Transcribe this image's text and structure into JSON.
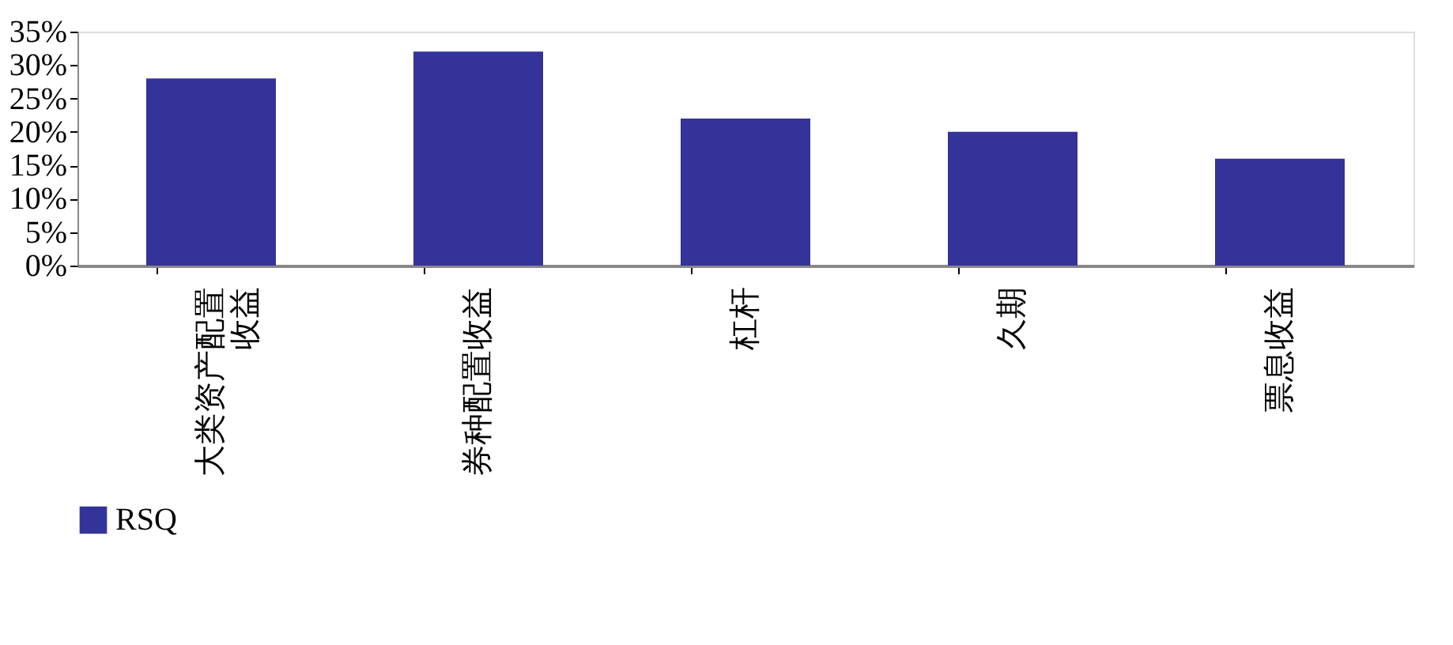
{
  "chart_data": {
    "type": "bar",
    "categories": [
      "大类资产配置收益",
      "券种配置收益",
      "杠杆",
      "久期",
      "票息收益"
    ],
    "series": [
      {
        "name": "RSQ",
        "color": "#333399",
        "values": [
          28,
          32,
          22,
          20,
          16
        ]
      }
    ],
    "ylim": [
      0,
      35
    ],
    "yticks": [
      {
        "value": 0,
        "label": "0%"
      },
      {
        "value": 5,
        "label": "5%"
      },
      {
        "value": 10,
        "label": "10%"
      },
      {
        "value": 15,
        "label": "15%"
      },
      {
        "value": 20,
        "label": "20%"
      },
      {
        "value": 25,
        "label": "25%"
      },
      {
        "value": 30,
        "label": "30%"
      },
      {
        "value": 35,
        "label": "35%"
      }
    ],
    "grid": false,
    "legend": "bottom"
  }
}
